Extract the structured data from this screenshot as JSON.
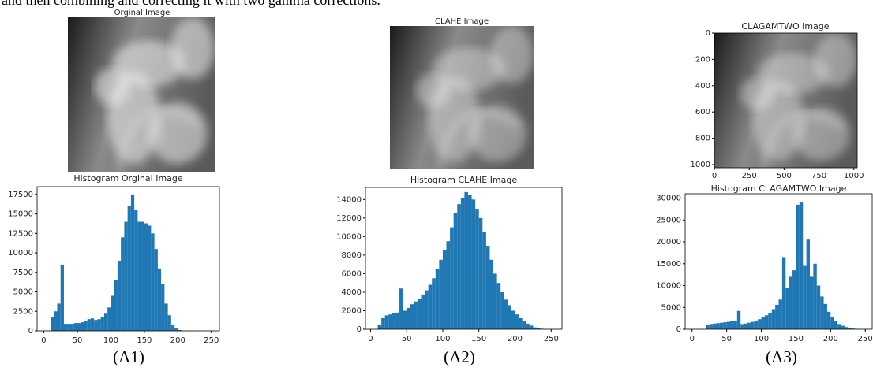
{
  "intro": "and then combining and correcting it with two gamma corrections.",
  "images": [
    {
      "title": "Orginal Image"
    },
    {
      "title": "CLAHE Image"
    },
    {
      "title": "CLAGAMTWO Image",
      "xlim": [
        0,
        1024
      ],
      "ylim": [
        1024,
        0
      ],
      "xticks": [
        0,
        250,
        500,
        750,
        1000
      ],
      "yticks": [
        0,
        200,
        400,
        600,
        800,
        1000
      ]
    }
  ],
  "captions": [
    "(A1)",
    "(A2)",
    "(A3)"
  ],
  "chart_data": [
    {
      "type": "histogram",
      "title": "Histogram Orginal Image",
      "color": "#1f77b4",
      "bins": [
        10,
        15,
        20,
        25,
        30,
        35,
        40,
        45,
        50,
        55,
        60,
        65,
        70,
        75,
        80,
        85,
        90,
        95,
        100,
        105,
        110,
        115,
        120,
        125,
        130,
        135,
        140,
        145,
        150,
        155,
        160,
        165,
        170,
        175,
        180,
        185,
        190,
        195,
        200,
        205,
        210
      ],
      "values": [
        1800,
        2500,
        3500,
        8500,
        900,
        900,
        900,
        1000,
        1000,
        1100,
        1300,
        1500,
        1600,
        1400,
        1500,
        1800,
        2200,
        3000,
        4500,
        6500,
        9000,
        12000,
        14000,
        16000,
        17500,
        15500,
        14000,
        14000,
        13800,
        13500,
        12500,
        10500,
        8000,
        6000,
        3500,
        2000,
        800,
        300,
        100,
        30
      ],
      "xlim": [
        -10,
        262
      ],
      "ylim": [
        0,
        18500
      ],
      "xticks": [
        0,
        50,
        100,
        150,
        200,
        250
      ],
      "yticks": [
        0,
        2500,
        5000,
        7500,
        10000,
        12500,
        15000,
        17500
      ]
    },
    {
      "type": "histogram",
      "title": "Histogram CLAHE Image",
      "color": "#1f77b4",
      "bins": [
        10,
        15,
        20,
        25,
        30,
        35,
        40,
        45,
        50,
        55,
        60,
        65,
        70,
        75,
        80,
        85,
        90,
        95,
        100,
        105,
        110,
        115,
        120,
        125,
        130,
        135,
        140,
        145,
        150,
        155,
        160,
        165,
        170,
        175,
        180,
        185,
        190,
        195,
        200,
        205,
        210,
        215,
        220,
        225,
        230,
        235,
        240
      ],
      "values": [
        500,
        1200,
        1500,
        1600,
        1700,
        1800,
        4400,
        2000,
        2300,
        2700,
        3000,
        3300,
        3700,
        4200,
        4800,
        5500,
        6500,
        7500,
        8500,
        9500,
        11000,
        12500,
        13500,
        14200,
        14800,
        14500,
        14000,
        13000,
        12000,
        10500,
        9000,
        7500,
        6000,
        5000,
        4000,
        3200,
        2600,
        2000,
        1600,
        1200,
        900,
        600,
        400,
        200,
        100,
        50
      ],
      "xlim": [
        -7,
        265
      ],
      "ylim": [
        0,
        15300
      ],
      "xticks": [
        0,
        50,
        100,
        150,
        200,
        250
      ],
      "yticks": [
        0,
        2000,
        4000,
        6000,
        8000,
        10000,
        12000,
        14000
      ]
    },
    {
      "type": "histogram",
      "title": "Histogram CLAGAMTWO Image",
      "color": "#1f77b4",
      "bins": [
        20,
        25,
        30,
        35,
        40,
        45,
        50,
        55,
        60,
        65,
        70,
        75,
        80,
        85,
        90,
        95,
        100,
        105,
        110,
        115,
        120,
        125,
        130,
        135,
        140,
        145,
        150,
        155,
        160,
        165,
        170,
        175,
        180,
        185,
        190,
        195,
        200,
        205,
        210,
        215,
        220,
        225,
        230,
        235,
        240
      ],
      "values": [
        1000,
        1200,
        1300,
        1400,
        1500,
        1600,
        1700,
        1800,
        2000,
        4200,
        1200,
        1300,
        1500,
        1700,
        2000,
        2300,
        2700,
        3200,
        3800,
        4600,
        5600,
        6800,
        16500,
        9500,
        12000,
        13500,
        28500,
        29000,
        14500,
        20500,
        12000,
        15000,
        10000,
        7500,
        5800,
        4000,
        2800,
        1800,
        1200,
        800,
        500,
        300,
        150,
        80
      ],
      "xlim": [
        -10,
        260
      ],
      "ylim": [
        0,
        31000
      ],
      "xticks": [
        0,
        50,
        100,
        150,
        200,
        250
      ],
      "yticks": [
        0,
        5000,
        10000,
        15000,
        20000,
        25000,
        30000
      ]
    }
  ]
}
